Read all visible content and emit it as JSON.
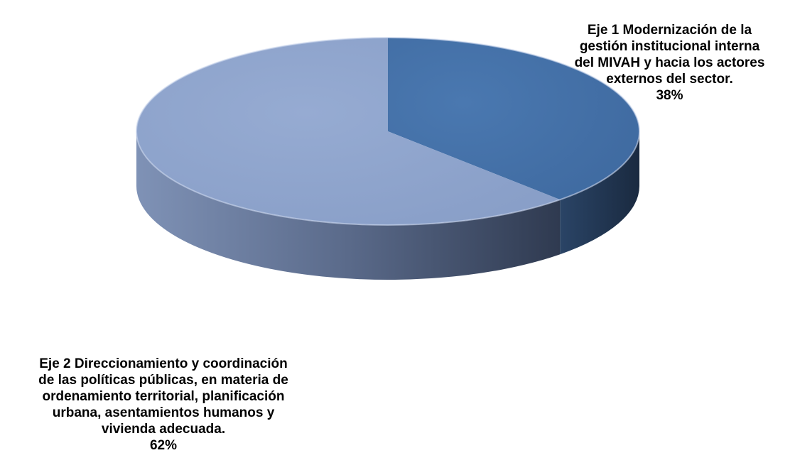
{
  "chart_data": {
    "type": "pie",
    "style": "3d",
    "slices": [
      {
        "label": "Eje 1 Modernización de la\ngestión institucional interna\ndel MIVAH y hacia los actores\nexternos del sector.",
        "value": 38,
        "value_label": "38%",
        "color": "#4470a6"
      },
      {
        "label": "Eje 2 Direccionamiento y coordinación\nde las políticas públicas, en materia de\nordenamiento territorial, planificación\nurbana, asentamientos humanos y\nvivienda adecuada.",
        "value": 62,
        "value_label": "62%",
        "color": "#8fa6cf"
      }
    ]
  }
}
